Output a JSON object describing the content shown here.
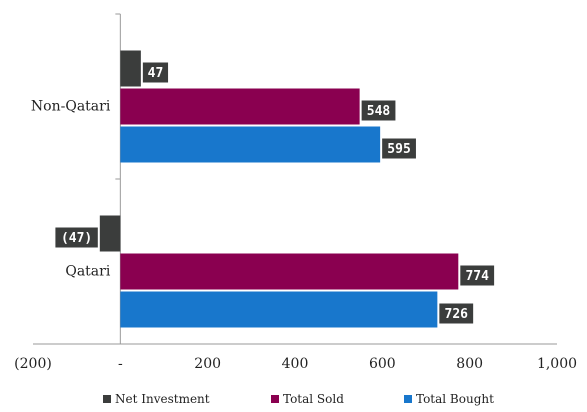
{
  "chart_data": {
    "type": "bar",
    "orientation": "horizontal",
    "categories": [
      "Non-Qatari",
      "Qatari"
    ],
    "series": [
      {
        "name": "Net Investment",
        "color": "#3b3d3c",
        "values": [
          47,
          -47
        ],
        "labels": [
          "47",
          "(47)"
        ]
      },
      {
        "name": "Total Sold",
        "color": "#8a0050",
        "values": [
          548,
          774
        ],
        "labels": [
          "548",
          "774"
        ]
      },
      {
        "name": "Total Bought",
        "color": "#1877cc",
        "values": [
          595,
          726
        ],
        "labels": [
          "595",
          "726"
        ]
      }
    ],
    "xlim": [
      -200,
      1000
    ],
    "xticks": [
      -200,
      0,
      200,
      400,
      600,
      800,
      1000
    ],
    "xtick_labels": [
      "(200)",
      "-",
      "200",
      "400",
      "600",
      "800",
      "1,000"
    ],
    "grid": false,
    "legend_position": "bottom",
    "label_box_color": "#3b3d3c",
    "label_text_color": "#ffffff",
    "axis_color": "#9a9a9a"
  }
}
